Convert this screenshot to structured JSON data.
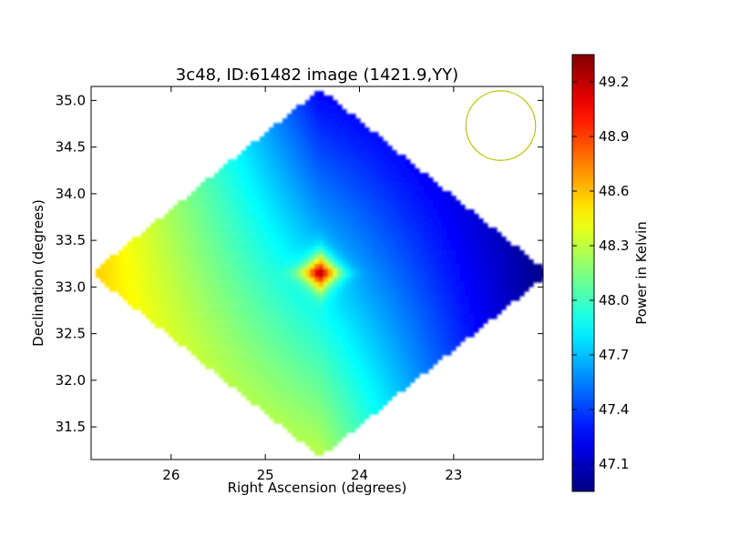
{
  "chart_data": {
    "type": "heatmap",
    "title": "3c48, ID:61482 image (1421.9,YY)",
    "xlabel": "Right Ascension (degrees)",
    "ylabel": "Declination (degrees)",
    "xlim": [
      26.85,
      22.05
    ],
    "ylim": [
      31.15,
      35.15
    ],
    "x_inverted": true,
    "xticks": [
      26,
      25,
      24,
      23
    ],
    "xtick_labels": [
      "26",
      "25",
      "24",
      "23"
    ],
    "yticks": [
      31.5,
      32.0,
      32.5,
      33.0,
      33.5,
      34.0,
      34.5,
      35.0
    ],
    "ytick_labels": [
      "31.5",
      "32.0",
      "32.5",
      "33.0",
      "33.5",
      "34.0",
      "34.5",
      "35.0"
    ],
    "coverage_region": {
      "shape": "diamond",
      "center": [
        24.42,
        33.15
      ],
      "ra_half_width": 2.43,
      "dec_half_height": 1.97
    },
    "source_peak": {
      "ra": 24.42,
      "dec": 33.15,
      "value": 49.3
    },
    "value_range": [
      46.95,
      49.35
    ],
    "field_gradient": {
      "east_edge": {
        "ra": 26.8,
        "dec": 33.15,
        "value": 48.58
      },
      "west_edge": {
        "ra": 22.05,
        "dec": 33.15,
        "value": 46.95
      },
      "north_corner": {
        "ra": 24.45,
        "dec": 35.12,
        "value": 47.15
      },
      "south_corner": {
        "ra": 24.45,
        "dec": 31.18,
        "value": 48.2
      }
    },
    "beam_marker": {
      "ra": 22.5,
      "dec": 34.73,
      "radius_deg": 0.37,
      "color": "#bfbf00"
    },
    "colorbar": {
      "label": "Power in Kelvin",
      "min": 46.95,
      "max": 49.35,
      "ticks": [
        47.1,
        47.4,
        47.7,
        48.0,
        48.3,
        48.6,
        48.9,
        49.2
      ],
      "tick_labels": [
        "47.1",
        "47.4",
        "47.7",
        "48.0",
        "48.3",
        "48.6",
        "48.9",
        "49.2"
      ],
      "colormap": "jet"
    },
    "grid": false
  }
}
